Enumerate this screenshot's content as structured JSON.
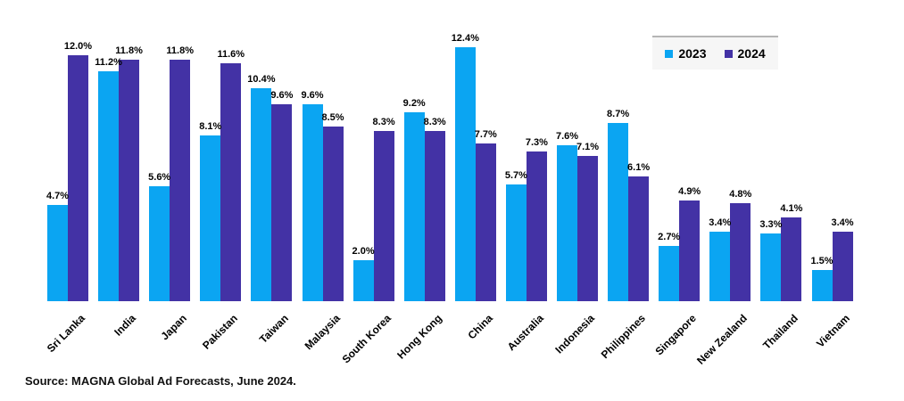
{
  "chart_data": {
    "type": "bar",
    "title": "",
    "categories": [
      "Sri Lanka",
      "India",
      "Japan",
      "Pakistan",
      "Taiwan",
      "Malaysia",
      "South Korea",
      "Hong Kong",
      "China",
      "Australia",
      "Indonesia",
      "Philippines",
      "Singapore",
      "New Zealand",
      "Thailand",
      "Vietnam"
    ],
    "series": [
      {
        "name": "2023",
        "color": "#0ba5f2",
        "values": [
          4.7,
          11.2,
          5.6,
          8.1,
          10.4,
          9.6,
          2.0,
          9.2,
          12.4,
          5.7,
          7.6,
          8.7,
          2.7,
          3.4,
          3.3,
          1.5
        ]
      },
      {
        "name": "2024",
        "color": "#4332a5",
        "values": [
          12.0,
          11.8,
          11.8,
          11.6,
          9.6,
          8.5,
          8.3,
          8.3,
          7.7,
          7.3,
          7.1,
          6.1,
          4.9,
          4.8,
          4.1,
          3.4
        ]
      }
    ],
    "value_suffix": "%",
    "value_decimals": 1,
    "ylim": [
      0,
      12.4
    ],
    "grid": false,
    "axis_lines": false,
    "legend_position": "top-right",
    "legend_colors": {
      "2023": "#0ba5f2",
      "2024": "#4332a5"
    }
  },
  "source_note": "Source: MAGNA Global Ad Forecasts, June 2024."
}
